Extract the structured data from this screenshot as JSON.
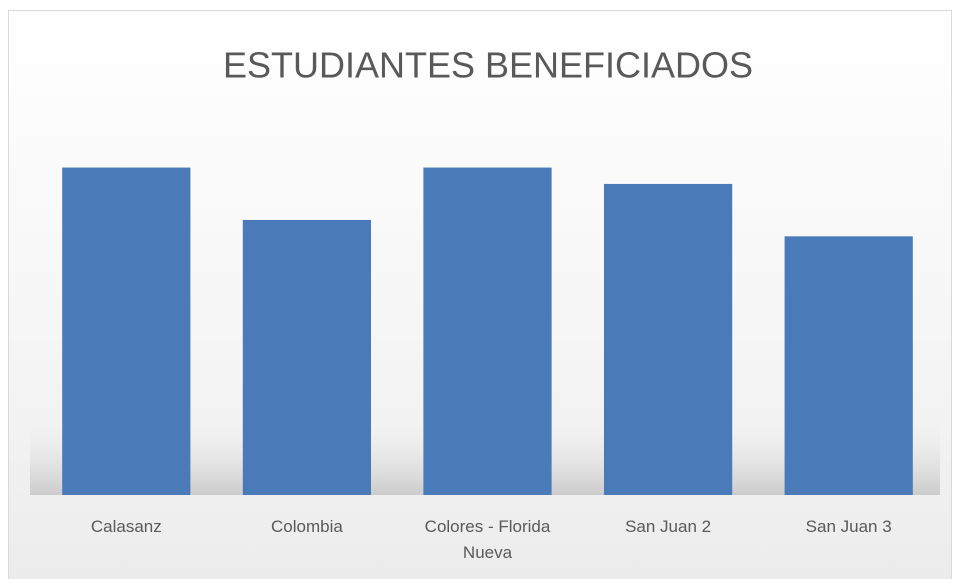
{
  "chart_data": {
    "type": "bar",
    "title": "ESTUDIANTES BENEFICIADOS",
    "categories": [
      "Calasanz",
      "Colombia",
      "Colores - Florida Nueva",
      "San Juan 2",
      "San Juan 3"
    ],
    "values": [
      100,
      84,
      100,
      95,
      79
    ],
    "color": "#4a7ab8",
    "ylim": [
      0,
      113
    ]
  }
}
